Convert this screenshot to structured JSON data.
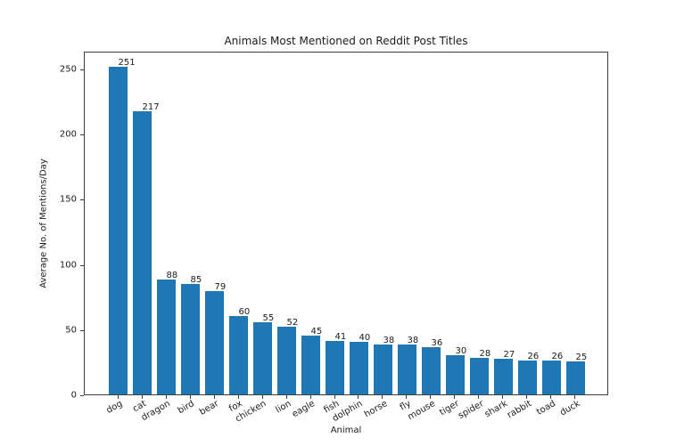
{
  "chart_data": {
    "type": "bar",
    "title": "Animals Most Mentioned on Reddit Post Titles",
    "xlabel": "Animal",
    "ylabel": "Average No. of Mentions/Day",
    "categories": [
      "dog",
      "cat",
      "dragon",
      "bird",
      "bear",
      "fox",
      "chicken",
      "lion",
      "eagle",
      "fish",
      "dolphin",
      "horse",
      "fly",
      "mouse",
      "tiger",
      "spider",
      "shark",
      "rabbit",
      "toad",
      "duck"
    ],
    "values": [
      251,
      217,
      88,
      85,
      79,
      60,
      55,
      52,
      45,
      41,
      40,
      38,
      38,
      36,
      30,
      28,
      27,
      26,
      26,
      25
    ],
    "bar_labels": [
      "251",
      "217",
      "88",
      "85",
      "79",
      "60",
      "55",
      "52",
      "45",
      "41",
      "40",
      "38",
      "38",
      "36",
      "30",
      "28",
      "27",
      "26",
      "26",
      "25"
    ],
    "yticks": [
      0,
      50,
      100,
      150,
      200,
      250
    ],
    "ylim": [
      0,
      263.55
    ],
    "bar_color": "#1f77b4",
    "grid": false,
    "legend_position": "none",
    "xtick_rotation": 30
  }
}
